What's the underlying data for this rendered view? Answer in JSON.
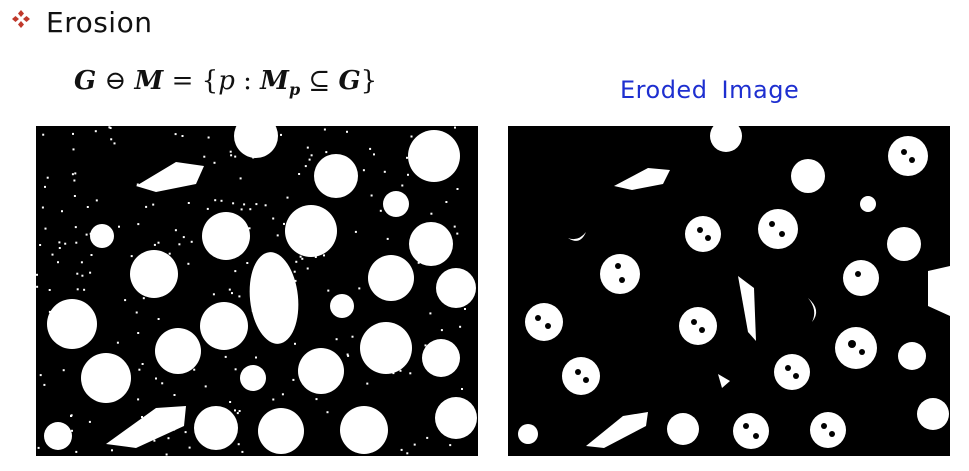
{
  "heading": {
    "icon": "diamond-bullet-icon",
    "text": "Erosion"
  },
  "formula": {
    "G": "G",
    "op": "⊖",
    "M": "M",
    "eq": "=",
    "lbrace": "{",
    "p": "p",
    "colon": ":",
    "Mp": "M",
    "sub": "p",
    "subseteq": "⊆",
    "G2": "G",
    "rbrace": "}"
  },
  "right_caption": "Eroded  Image",
  "colors": {
    "bullet": "#c0392b",
    "caption": "#1e2fd0",
    "image_bg": "#000000",
    "image_fg": "#ffffff"
  }
}
